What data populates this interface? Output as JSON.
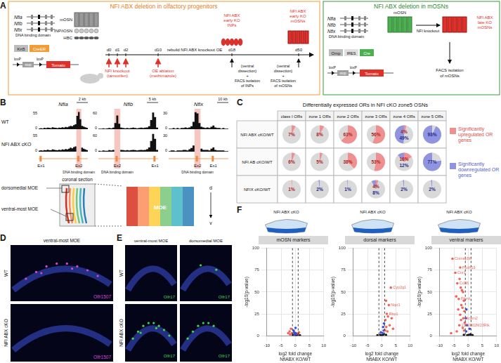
{
  "figure": {
    "A": {
      "label": "A",
      "left": {
        "title": "NFI ABX deletion in olfactory progenitors",
        "genes": [
          "Nfia",
          "Nfib",
          "Nfix"
        ],
        "domain": "DNA binding domain",
        "transgene": {
          "driver": "Krt5",
          "recombinase": "CreER",
          "reporter": "Tomato",
          "lox": "loxP",
          "stop": "stop"
        },
        "cells": [
          "mOSN",
          "INP/iOSN",
          "HBC"
        ],
        "days": [
          "d0",
          "d1",
          "d2",
          "d10",
          "d18",
          "d50"
        ],
        "knockout": [
          "NFI knockout",
          "(tamoxifen)"
        ],
        "ablation": [
          "OE ablation",
          "(methimazole)"
        ],
        "rebuild": "rebuild NFI ABX knockout OE",
        "early_inps": [
          "NFI ABX",
          "early KO",
          "INPs"
        ],
        "early_mosns": [
          "NFI ABX",
          "early KO",
          "mOSNs"
        ],
        "sort_inps": [
          "(ventral",
          "dissection)",
          "+",
          "FACS isolation",
          "of INPs"
        ],
        "sort_mosns": [
          "(ventral",
          "dissection)",
          "+",
          "FACS isolation",
          "of mOSNs"
        ]
      },
      "right": {
        "title": "NFI ABX deletion in mOSNs",
        "genes": [
          "Nfia",
          "Nfib",
          "Nfix"
        ],
        "domain": "DNA binding domain",
        "cell": "mOSN",
        "knockout": "NFI knockout",
        "late": [
          "NFI ABX",
          "late KO",
          "mOSNs"
        ],
        "transgene": {
          "driver": "Omp",
          "ires": "IRES",
          "recombinase": "Cre",
          "reporter": "Tomato",
          "lox": "loxP",
          "stop": "stop"
        },
        "sort": [
          "FACS isolation",
          "of mOSNs"
        ]
      }
    },
    "B": {
      "label": "B",
      "rows": [
        "WT",
        "NFI ABX cKO"
      ],
      "domain": "DNA binding domain",
      "tracks": [
        {
          "gene": "Nfia",
          "scale": "2 kb",
          "ylim": [
            0,
            55
          ],
          "exons": [
            {
              "label": "Ex1",
              "bin": 1
            },
            {
              "label": "Ex2",
              "bin": 24
            }
          ],
          "deleted": "Ex2",
          "WT": [
            2,
            3,
            2,
            4,
            3,
            5,
            4,
            3,
            6,
            5,
            4,
            3,
            5,
            4,
            6,
            5,
            7,
            6,
            8,
            10,
            9,
            12,
            15,
            40,
            52,
            30,
            10,
            8,
            6,
            4
          ],
          "NFI ABX cKO": [
            3,
            4,
            3,
            5,
            4,
            6,
            5,
            4,
            7,
            6,
            5,
            4,
            6,
            5,
            7,
            6,
            8,
            7,
            9,
            12,
            10,
            14,
            16,
            0,
            0,
            0,
            12,
            9,
            7,
            5
          ]
        },
        {
          "gene": "Nfib",
          "scale": "5 kb",
          "ylim": [
            0,
            60
          ],
          "exons": [
            {
              "label": "Ex2",
              "bin": 9
            },
            {
              "label": "Ex1",
              "bin": 28
            }
          ],
          "deleted": "Ex2",
          "WT": [
            2,
            2,
            3,
            2,
            3,
            4,
            3,
            5,
            20,
            45,
            18,
            5,
            4,
            3,
            4,
            3,
            4,
            5,
            4,
            3,
            4,
            5,
            4,
            5,
            6,
            10,
            30,
            55,
            40,
            5
          ],
          "NFI ABX cKO": [
            3,
            2,
            4,
            3,
            3,
            5,
            4,
            6,
            0,
            0,
            0,
            6,
            5,
            4,
            5,
            4,
            5,
            6,
            5,
            4,
            5,
            6,
            5,
            6,
            8,
            14,
            35,
            58,
            42,
            6
          ]
        },
        {
          "gene": "Nfix",
          "scale": "10 kb",
          "ylim": [
            0,
            30
          ],
          "exons": [
            {
              "label": "Ex2",
              "bin": 14
            },
            {
              "label": "Ex1",
              "bin": 22
            }
          ],
          "deleted": "Ex2",
          "WT": [
            1,
            1,
            2,
            1,
            2,
            1,
            2,
            2,
            3,
            2,
            3,
            5,
            12,
            28,
            26,
            10,
            4,
            3,
            2,
            3,
            2,
            4,
            6,
            3,
            2,
            2,
            1,
            2,
            1,
            1
          ],
          "NFI ABX cKO": [
            1,
            2,
            2,
            1,
            2,
            2,
            2,
            3,
            3,
            2,
            4,
            6,
            10,
            0,
            0,
            0,
            5,
            3,
            3,
            3,
            2,
            5,
            7,
            3,
            2,
            2,
            2,
            2,
            1,
            1
          ]
        }
      ]
    },
    "section": {
      "ventral": "ventral-most MOE",
      "dorsal": "dorsomedial MOE",
      "section": "coronal section",
      "moe": "MOE",
      "axis": [
        "d",
        "v"
      ]
    },
    "C": {
      "label": "C",
      "title": "Differentially expressed ORs in NFI cKO zone5 OSNs",
      "columns": [
        "class I ORs",
        "zone 1 ORs",
        "zone 2 ORs",
        "zone 3 ORs",
        "zone 4 ORs",
        "zone 5 ORs"
      ],
      "legend": {
        "up": {
          "text": "Significantly upregulated OR genes",
          "color": "#ef8f8f"
        },
        "down": {
          "text": "Significantly downregulated OR genes",
          "color": "#8f93e0"
        }
      },
      "rows": [
        {
          "name": "NFI ABX cKO/WT",
          "cells": [
            {
              "up": 7,
              "up_label": "7%"
            },
            {
              "up": 8,
              "up_label": "8%"
            },
            {
              "up": 63,
              "up_label": "63%"
            },
            {
              "up": 56,
              "up_label": "56%"
            },
            {
              "up": 4,
              "up_label": "4%",
              "down": 49,
              "down_label": "49%"
            },
            {
              "down": 93,
              "down_label": "93%"
            }
          ]
        },
        {
          "name": "NFI AB cKO/WT",
          "cells": [
            {
              "up": 6,
              "up_label": "6%"
            },
            {
              "up": 5,
              "up_label": "5%"
            },
            {
              "up": 38,
              "up_label": "38%"
            },
            {
              "up": 53,
              "up_label": "53%"
            },
            {
              "up": 16,
              "up_label": "16%",
              "down": 12,
              "down_label": "12%"
            },
            {
              "down": 77,
              "down_label": "77%"
            }
          ]
        },
        {
          "name": "NFIX cKO/WT",
          "cells": [
            {
              "up": 1,
              "up_label": "1%"
            },
            {
              "down": 2,
              "down_label": "2%"
            },
            {
              "down": 1,
              "down_label": "1%"
            },
            {
              "up": 4,
              "up_label": "4%",
              "down": 8,
              "down_label": "8%"
            },
            {
              "down": 2,
              "down_label": "2%"
            },
            {
              "down": 2,
              "down_label": "2%"
            }
          ]
        }
      ]
    },
    "D": {
      "label": "D",
      "title": "ventral-most MOE",
      "rows": [
        "WT",
        "NFI ABX cKO"
      ],
      "probe": "Olfr1507"
    },
    "E": {
      "label": "E",
      "columns": [
        "ventral-most MOE",
        "dorsomedial MOE"
      ],
      "rows": [
        "WT",
        "NFI ABX cKO"
      ],
      "probe": "Olfr17"
    },
    "F": {
      "label": "F",
      "header": "NFI ABX cKO"
    }
  },
  "chart_data": [
    {
      "type": "scatter",
      "title": "mOSN markers",
      "x_label": [
        "log2 fold change",
        "NfiABX KO/WT"
      ],
      "y_label": "-log10(p-value)",
      "xlim": [
        -10,
        10
      ],
      "xticks": [
        -10,
        -5,
        0,
        5,
        10
      ],
      "ylim": [
        0,
        100
      ],
      "yticks": [
        0,
        25,
        50,
        75,
        100
      ],
      "grid": true,
      "threshold": {
        "values": [
          -1,
          1
        ],
        "line_style": "dashed"
      },
      "series": [
        {
          "color": "#f0645a",
          "x": [
            -1.5,
            -2.0,
            -1.2,
            1.3,
            -2.5,
            1.1,
            -1.8
          ],
          "values": [
            8,
            5,
            3,
            4,
            3,
            2.5,
            1.5
          ]
        },
        {
          "color": "#3b4fd8",
          "x": [
            -0.4,
            0.2,
            -0.6,
            0.5,
            -0.3,
            0.1
          ],
          "values": [
            4,
            3,
            6,
            2,
            1.2,
            9
          ]
        },
        {
          "color": "#1a1a1a",
          "x": [
            -0.5,
            0.3,
            -0.2,
            0.4,
            0.1,
            -0.8,
            0.7,
            1.6
          ],
          "values": [
            1,
            0.5,
            2,
            1.5,
            0.2,
            0.7,
            0.9,
            0.6
          ]
        }
      ],
      "annotations": []
    },
    {
      "type": "scatter",
      "title": "dorsal markers",
      "x_label": [
        "log2 fold change",
        "NfiABX KO/WT"
      ],
      "y_label": "-log10(p-value)",
      "xlim": [
        -10,
        10
      ],
      "xticks": [
        -10,
        -5,
        0,
        5,
        10
      ],
      "ylim": [
        0,
        100
      ],
      "yticks": [
        0,
        25,
        50,
        75,
        100
      ],
      "grid": true,
      "threshold": {
        "values": [
          -1,
          1
        ],
        "line_style": "dashed"
      },
      "series": [
        {
          "color": "#f0645a",
          "x": [
            3.2,
            1.5,
            2.5,
            1.8,
            2.2,
            3.5,
            1.3,
            2.8,
            1.6,
            4.0,
            1.2,
            2.0
          ],
          "values": [
            55,
            40,
            35,
            25,
            22,
            20,
            18,
            12,
            10,
            8,
            6,
            5
          ]
        },
        {
          "color": "#3b4fd8",
          "x": [
            0.5,
            0.7,
            -0.3,
            0.4,
            0.8
          ],
          "values": [
            10,
            6,
            4,
            3,
            14
          ]
        },
        {
          "color": "#1a1a1a",
          "x": [
            -0.5,
            0.2,
            0.6,
            -0.2,
            1.5,
            -1.5
          ],
          "values": [
            1,
            0.8,
            1.5,
            0.3,
            1,
            0.5
          ]
        }
      ],
      "annotations": [
        {
          "text": "Cyp2g1",
          "x": 3.2,
          "y": 55
        },
        {
          "text": "Nqo1",
          "x": 2.5,
          "y": 35
        },
        {
          "text": "Rbp1",
          "x": 1.8,
          "y": 25
        }
      ]
    },
    {
      "type": "scatter",
      "title": "ventral markers",
      "x_label": [
        "log2 fold change",
        "NfiABX KO/WT"
      ],
      "y_label": "-log10(p-value)",
      "xlim": [
        -10,
        10
      ],
      "xticks": [
        -10,
        -5,
        0,
        5,
        10
      ],
      "ylim": [
        0,
        100
      ],
      "yticks": [
        0,
        25,
        50,
        75,
        100
      ],
      "grid": true,
      "threshold": {
        "values": [
          -1,
          1
        ],
        "line_style": "dashed"
      },
      "series": [
        {
          "color": "#f0645a",
          "x": [
            -5.5,
            -2.8,
            -4.5,
            -3.0,
            -3.8,
            -2.6,
            -2.2,
            -1.8,
            -4.2,
            -3.3,
            -1.5,
            -2.4,
            -2.0,
            -3.5,
            -1.3,
            -2.8,
            -1.7,
            -2.5,
            -1.2,
            -3.1,
            -1.9,
            -1.4,
            -4.0,
            -6.0
          ],
          "values": [
            88,
            78,
            72,
            65,
            60,
            55,
            52,
            50,
            45,
            42,
            40,
            35,
            32,
            30,
            28,
            24,
            20,
            18,
            15,
            12,
            9,
            6,
            5,
            3
          ]
        },
        {
          "color": "#3b4fd8",
          "x": [
            -0.6,
            -0.8,
            -0.4,
            0.5,
            -0.7
          ],
          "values": [
            30,
            20,
            12,
            8,
            5
          ]
        },
        {
          "color": "#1a1a1a",
          "x": [
            0.2,
            -0.3,
            0.8,
            1.5,
            -1.5
          ],
          "values": [
            1,
            0.5,
            1.5,
            0.8,
            1
          ]
        }
      ],
      "annotations": [
        {
          "text": "Cntnap5b",
          "x": -5.5,
          "y": 88
        },
        {
          "text": "Pcdh19",
          "x": -2.8,
          "y": 78
        },
        {
          "text": "Cnr1",
          "x": -4.5,
          "y": 72
        },
        {
          "text": "Cd36",
          "x": -3.8,
          "y": 60
        },
        {
          "text": "Ptprd",
          "x": -3.3,
          "y": 42
        },
        {
          "text": "Ncam2",
          "x": -1.7,
          "y": 20
        },
        {
          "text": "2300002M23Rik",
          "x": -3.1,
          "y": 12
        }
      ]
    }
  ]
}
